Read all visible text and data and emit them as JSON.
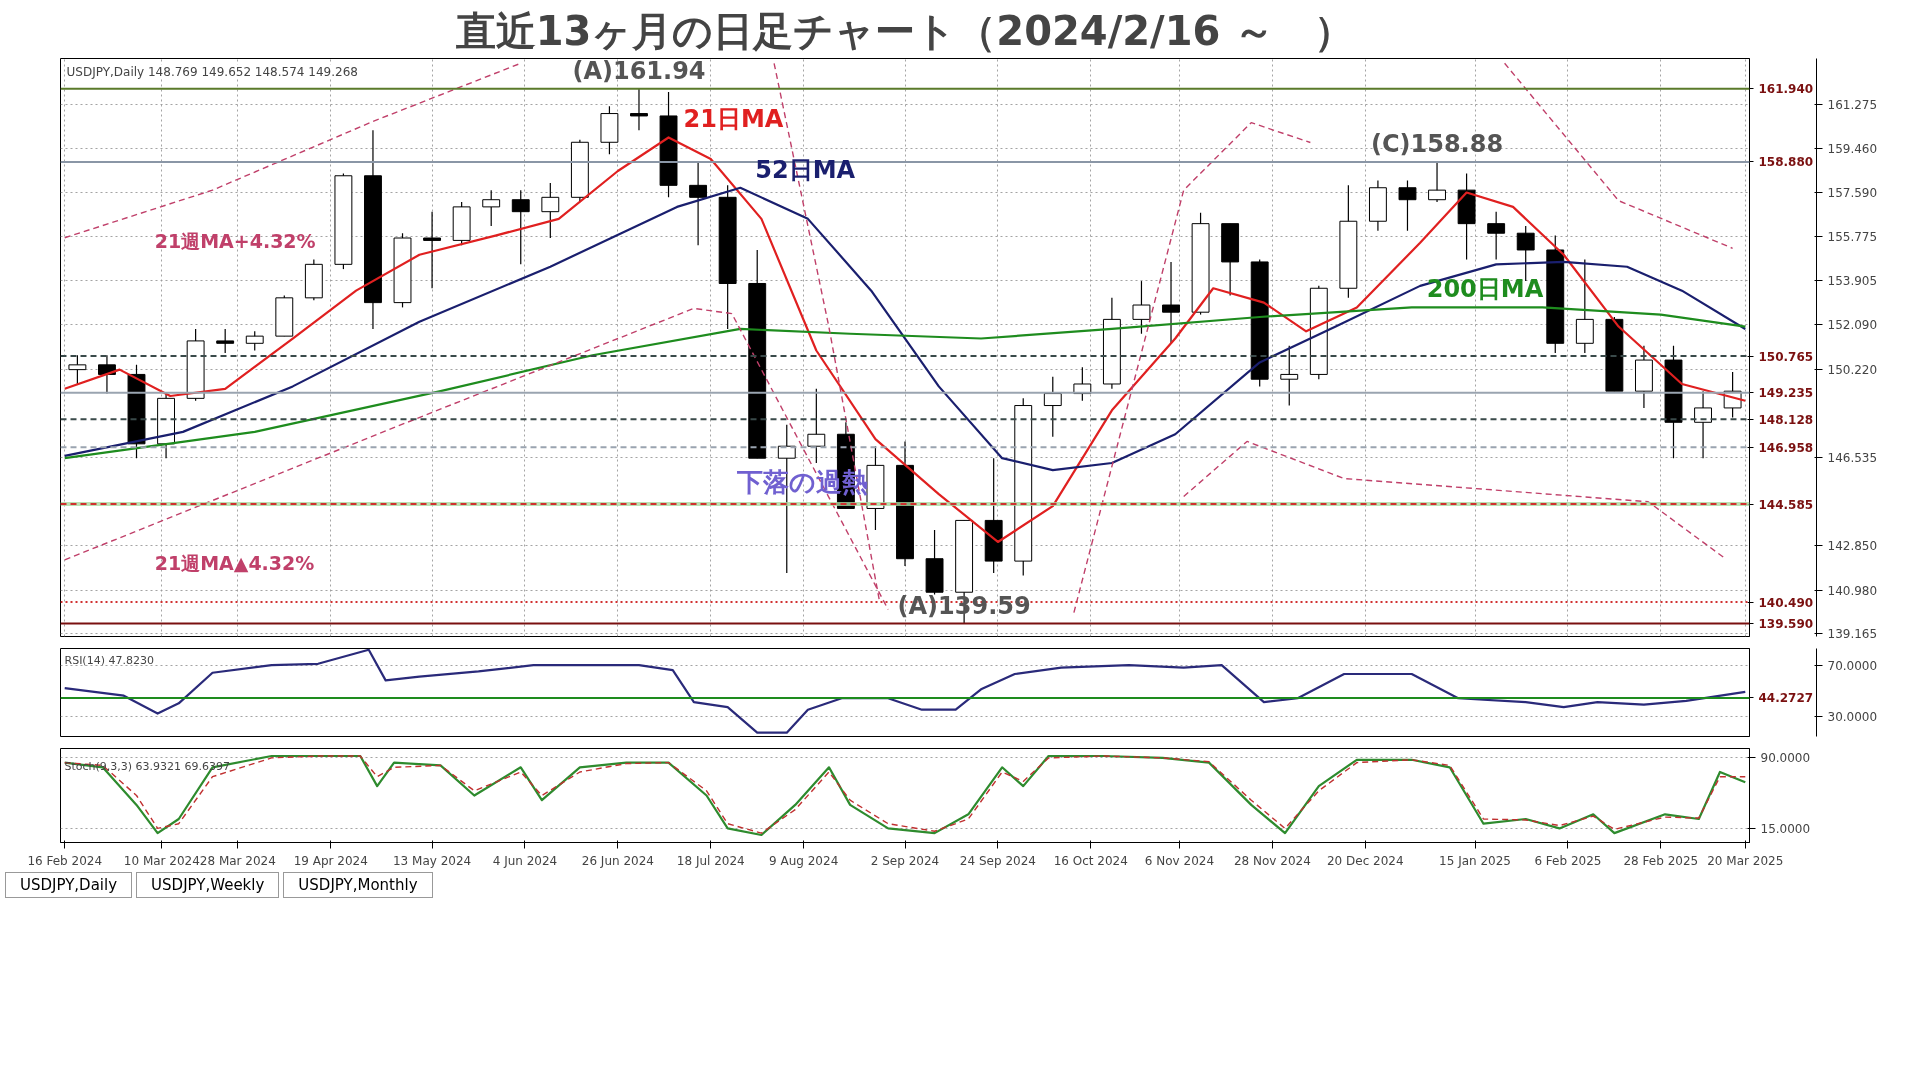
{
  "chart_data": [
    {
      "type": "candlestick",
      "title": "直近13ヶ月の日足チャート（2024/2/16 ～　）",
      "x": [
        "2024-02-19",
        "2024-02-26",
        "2024-03-04",
        "2024-03-11",
        "2024-03-18",
        "2024-03-25",
        "2024-04-01",
        "2024-04-08",
        "2024-04-15",
        "2024-04-22",
        "2024-04-29",
        "2024-05-06",
        "2024-05-13",
        "2024-05-20",
        "2024-05-27",
        "2024-06-03",
        "2024-06-10",
        "2024-06-17",
        "2024-06-24",
        "2024-07-01",
        "2024-07-08",
        "2024-07-15",
        "2024-07-22",
        "2024-07-29",
        "2024-08-05",
        "2024-08-12",
        "2024-08-19",
        "2024-08-26",
        "2024-09-02",
        "2024-09-09",
        "2024-09-16",
        "2024-09-23",
        "2024-09-30",
        "2024-10-07",
        "2024-10-14",
        "2024-10-21",
        "2024-10-28",
        "2024-11-04",
        "2024-11-11",
        "2024-11-18",
        "2024-11-25",
        "2024-12-02",
        "2024-12-09",
        "2024-12-16",
        "2024-12-23",
        "2024-12-30",
        "2025-01-06",
        "2025-01-13",
        "2025-01-20",
        "2025-01-27",
        "2025-02-03",
        "2025-02-10",
        "2025-02-17",
        "2025-02-24",
        "2025-03-03",
        "2025-03-10",
        "2025-03-17"
      ],
      "ohlc": [
        [
          150.2,
          150.8,
          149.6,
          150.4
        ],
        [
          150.4,
          150.8,
          149.2,
          150.0
        ],
        [
          150.0,
          150.4,
          146.5,
          147.1
        ],
        [
          147.1,
          149.2,
          146.5,
          149.0
        ],
        [
          149.0,
          151.9,
          148.9,
          151.4
        ],
        [
          151.4,
          151.9,
          150.9,
          151.3
        ],
        [
          151.3,
          151.8,
          151.0,
          151.6
        ],
        [
          151.6,
          153.3,
          151.6,
          153.2
        ],
        [
          153.2,
          154.8,
          153.1,
          154.6
        ],
        [
          154.6,
          158.4,
          154.4,
          158.3
        ],
        [
          158.3,
          160.2,
          151.9,
          153.0
        ],
        [
          153.0,
          155.9,
          152.8,
          155.7
        ],
        [
          155.7,
          156.8,
          153.6,
          155.6
        ],
        [
          155.6,
          157.2,
          155.4,
          157.0
        ],
        [
          157.0,
          157.7,
          156.2,
          157.3
        ],
        [
          157.3,
          157.7,
          154.6,
          156.8
        ],
        [
          156.8,
          158.0,
          155.7,
          157.4
        ],
        [
          157.4,
          159.8,
          157.2,
          159.7
        ],
        [
          159.7,
          161.2,
          159.2,
          160.9
        ],
        [
          160.9,
          161.94,
          160.2,
          160.8
        ],
        [
          160.8,
          161.8,
          157.4,
          157.9
        ],
        [
          157.9,
          158.9,
          155.4,
          157.4
        ],
        [
          157.4,
          157.9,
          151.9,
          153.8
        ],
        [
          153.8,
          155.2,
          146.5,
          146.5
        ],
        [
          146.5,
          147.9,
          141.7,
          147.0
        ],
        [
          147.0,
          149.4,
          146.3,
          147.5
        ],
        [
          147.5,
          148.0,
          144.4,
          144.4
        ],
        [
          144.4,
          147.0,
          143.5,
          146.2
        ],
        [
          146.2,
          147.2,
          142.0,
          142.3
        ],
        [
          142.3,
          143.5,
          140.8,
          140.9
        ],
        [
          140.9,
          143.9,
          139.59,
          143.9
        ],
        [
          143.9,
          146.5,
          141.7,
          142.2
        ],
        [
          142.2,
          149.0,
          141.6,
          148.7
        ],
        [
          148.7,
          149.9,
          147.4,
          149.2
        ],
        [
          149.2,
          150.3,
          148.9,
          149.6
        ],
        [
          149.6,
          153.2,
          149.4,
          152.3
        ],
        [
          152.3,
          153.9,
          151.7,
          152.9
        ],
        [
          152.9,
          154.7,
          151.3,
          152.6
        ],
        [
          152.6,
          156.75,
          152.5,
          156.3
        ],
        [
          156.3,
          156.3,
          153.3,
          154.7
        ],
        [
          154.7,
          154.8,
          149.5,
          149.8
        ],
        [
          149.8,
          151.2,
          148.7,
          150.0
        ],
        [
          150.0,
          153.7,
          149.8,
          153.6
        ],
        [
          153.6,
          157.9,
          153.2,
          156.4
        ],
        [
          156.4,
          158.1,
          156.0,
          157.8
        ],
        [
          157.8,
          158.1,
          156.0,
          157.3
        ],
        [
          157.3,
          158.88,
          157.2,
          157.7
        ],
        [
          157.7,
          158.4,
          154.8,
          156.3
        ],
        [
          156.3,
          156.8,
          154.8,
          155.9
        ],
        [
          155.9,
          156.2,
          153.9,
          155.2
        ],
        [
          155.2,
          155.8,
          150.9,
          151.3
        ],
        [
          151.3,
          154.8,
          150.9,
          152.3
        ],
        [
          152.3,
          152.4,
          149.3,
          149.3
        ],
        [
          149.3,
          151.2,
          148.6,
          150.6
        ],
        [
          150.6,
          151.2,
          146.5,
          148.0
        ],
        [
          148.0,
          149.3,
          146.5,
          148.6
        ],
        [
          148.6,
          150.1,
          148.2,
          149.3
        ]
      ],
      "series": [
        {
          "type": "line",
          "name": "21日MA",
          "color": "#e02020",
          "line_style": "solid",
          "x": [
            "2024-02-16",
            "2024-02-29",
            "2024-03-12",
            "2024-03-25",
            "2024-04-10",
            "2024-04-25",
            "2024-05-10",
            "2024-05-28",
            "2024-06-12",
            "2024-06-26",
            "2024-07-08",
            "2024-07-18",
            "2024-07-30",
            "2024-08-12",
            "2024-08-26",
            "2024-09-10",
            "2024-09-24",
            "2024-10-07",
            "2024-10-21",
            "2024-11-05",
            "2024-11-14",
            "2024-11-26",
            "2024-12-06",
            "2024-12-18",
            "2025-01-02",
            "2025-01-13",
            "2025-01-24",
            "2025-02-05",
            "2025-02-18",
            "2025-03-05",
            "2025-03-20"
          ],
          "values": [
            149.4,
            150.2,
            149.1,
            149.4,
            151.5,
            153.5,
            155.0,
            155.8,
            156.5,
            158.5,
            159.9,
            159.0,
            156.5,
            151.0,
            147.3,
            145.0,
            143.0,
            144.5,
            148.5,
            151.5,
            153.6,
            153.0,
            151.8,
            152.8,
            155.5,
            157.6,
            157.0,
            155.0,
            152.0,
            149.6,
            148.9
          ]
        },
        {
          "type": "line",
          "name": "52日MA",
          "color": "#1a1f6e",
          "line_style": "solid",
          "x": [
            "2024-02-16",
            "2024-03-15",
            "2024-04-10",
            "2024-05-10",
            "2024-06-10",
            "2024-07-10",
            "2024-07-25",
            "2024-08-10",
            "2024-08-25",
            "2024-09-10",
            "2024-09-25",
            "2024-10-07",
            "2024-10-21",
            "2024-11-05",
            "2024-11-25",
            "2024-12-13",
            "2025-01-02",
            "2025-01-20",
            "2025-02-05",
            "2025-02-20",
            "2025-03-05",
            "2025-03-20"
          ],
          "values": [
            146.6,
            147.6,
            149.5,
            152.2,
            154.5,
            157.0,
            157.8,
            156.5,
            153.5,
            149.5,
            146.5,
            146.0,
            146.3,
            147.5,
            150.5,
            152.0,
            153.7,
            154.6,
            154.7,
            154.5,
            153.5,
            151.9
          ]
        },
        {
          "type": "line",
          "name": "200日MA",
          "color": "#1e8c1e",
          "line_style": "solid",
          "x": [
            "2024-02-16",
            "2024-04-01",
            "2024-05-15",
            "2024-06-20",
            "2024-07-25",
            "2024-08-20",
            "2024-09-20",
            "2024-10-21",
            "2024-11-25",
            "2024-12-31",
            "2025-01-31",
            "2025-02-28",
            "2025-03-20"
          ],
          "values": [
            146.5,
            147.6,
            149.3,
            150.8,
            151.9,
            151.7,
            151.5,
            151.9,
            152.4,
            152.8,
            152.8,
            152.5,
            152.0
          ]
        },
        {
          "type": "line",
          "name": "21週MA+4.32%",
          "color": "#c0406a",
          "line_style": "dashed",
          "x": [
            "2024-02-16",
            "2024-03-22",
            "2024-04-29",
            "2024-06-03",
            "2024-06-20",
            "2024-08-02",
            "2024-08-15",
            "2024-08-27",
            "2024-09-20",
            "2024-10-12",
            "2024-11-07",
            "2024-11-23",
            "2024-12-07",
            "2024-12-25",
            "2025-01-22",
            "2025-02-18",
            "2025-03-17"
          ],
          "values": [
            155.71,
            157.7,
            160.57,
            163.0,
            null,
            163.0,
            151.96,
            140.49,
            null,
            140.05,
            157.7,
            160.52,
            159.69,
            null,
            163.0,
            157.26,
            155.27
          ]
        },
        {
          "type": "line",
          "name": "21週MA▲4.32%",
          "color": "#c0406a",
          "line_style": "dashed",
          "x": [
            "2024-02-16",
            "2024-05-02",
            "2024-07-14",
            "2024-07-23",
            "2024-08-29",
            "2024-10-20",
            "2024-11-07",
            "2024-11-22",
            "2024-12-15",
            "2025-02-25",
            "2025-03-15"
          ],
          "values": [
            142.25,
            147.64,
            152.76,
            152.54,
            140.18,
            null,
            144.9,
            147.2,
            145.65,
            144.68,
            142.34
          ]
        }
      ],
      "ref_lines": [
        {
          "axis": "y",
          "value": 161.94,
          "label": "161.940",
          "color": "#5a7a2a",
          "line_style": "solid"
        },
        {
          "axis": "y",
          "value": 158.88,
          "label": "158.880",
          "color": "#8a96a6",
          "line_style": "solid"
        },
        {
          "axis": "y",
          "value": 150.765,
          "label": "150.765",
          "color": "#3a4a4a",
          "line_style": "dashed"
        },
        {
          "axis": "y",
          "value": 149.235,
          "label": "149.235",
          "color": "#9aa4b0",
          "line_style": "solid"
        },
        {
          "axis": "y",
          "value": 148.128,
          "label": "148.128",
          "color": "#3a4a4a",
          "line_style": "dashed"
        },
        {
          "axis": "y",
          "value": 146.958,
          "label": "146.958",
          "color": "#9aa4b0",
          "line_style": "dashed"
        },
        {
          "axis": "y",
          "value": 144.585,
          "label": "144.585",
          "color": "#d03030",
          "line_style": "dashed"
        },
        {
          "axis": "y",
          "value": 140.49,
          "label": "140.490",
          "color": "#d03030",
          "line_style": "dotted"
        },
        {
          "axis": "y",
          "value": 139.59,
          "label": "139.590",
          "color": "#7a1010",
          "line_style": "solid"
        }
      ],
      "bands": [
        {
          "axis": "y",
          "from": 144.5,
          "to": 144.67,
          "color": "#a8d8a0"
        }
      ],
      "annotations": [
        "USDJPY,Daily  148.769 149.652 148.574 149.268",
        {
          "text": "(A)161.94",
          "x": "2024-07-01",
          "y": 161.94
        },
        {
          "text": "(C)158.88",
          "x": "2025-01-06",
          "y": 158.88
        },
        {
          "text": "(A)139.59",
          "x": "2024-09-16",
          "y": 139.59
        },
        "下落の過熱"
      ],
      "xlim": [
        "2024-02-15",
        "2025-03-21"
      ],
      "ylim": [
        139.05,
        163.2
      ],
      "xticks": [
        {
          "value": "2024-02-16",
          "label": null
        },
        {
          "value": "2024-03-10",
          "label": null
        },
        {
          "value": "2024-03-28",
          "label": null
        },
        {
          "value": "2024-04-19",
          "label": null
        },
        {
          "value": "2024-05-13",
          "label": null
        },
        {
          "value": "2024-06-04",
          "label": null
        },
        {
          "value": "2024-06-26",
          "label": null
        },
        {
          "value": "2024-07-18",
          "label": null
        },
        {
          "value": "2024-08-09",
          "label": null
        },
        {
          "value": "2024-09-02",
          "label": null
        },
        {
          "value": "2024-09-24",
          "label": null
        },
        {
          "value": "2024-10-16",
          "label": null
        },
        {
          "value": "2024-11-06",
          "label": null
        },
        {
          "value": "2024-11-28",
          "label": null
        },
        {
          "value": "2024-12-20",
          "label": null
        },
        {
          "value": "2025-01-15",
          "label": null
        },
        {
          "value": "2025-02-06",
          "label": null
        },
        {
          "value": "2025-02-28",
          "label": null
        },
        {
          "value": "2025-03-20",
          "label": null
        }
      ],
      "yticks": [
        {
          "value": 161.275,
          "label": "161.275"
        },
        {
          "value": 159.46,
          "label": "159.460"
        },
        {
          "value": 157.59,
          "label": "157.590"
        },
        {
          "value": 155.775,
          "label": "155.775"
        },
        {
          "value": 153.905,
          "label": "153.905"
        },
        {
          "value": 152.09,
          "label": "152.090"
        },
        {
          "value": 150.22,
          "label": "150.220"
        },
        {
          "value": 146.535,
          "label": "146.535"
        },
        {
          "value": 142.85,
          "label": "142.850"
        },
        {
          "value": 140.98,
          "label": "140.980"
        },
        {
          "value": 139.165,
          "label": "139.165"
        }
      ],
      "grid": true,
      "legend": false,
      "tick_labels": "y"
    },
    {
      "type": "line",
      "title": "RSI(14) 47.8230",
      "x": [
        "2024-02-16",
        "2024-03-01",
        "2024-03-09",
        "2024-03-14",
        "2024-03-22",
        "2024-04-05",
        "2024-04-16",
        "2024-04-28",
        "2024-05-02",
        "2024-05-10",
        "2024-05-24",
        "2024-06-06",
        "2024-06-17",
        "2024-07-01",
        "2024-07-09",
        "2024-07-14",
        "2024-07-22",
        "2024-07-29",
        "2024-08-05",
        "2024-08-10",
        "2024-08-18",
        "2024-08-29",
        "2024-09-06",
        "2024-09-14",
        "2024-09-20",
        "2024-09-28",
        "2024-10-09",
        "2024-10-25",
        "2024-11-07",
        "2024-11-16",
        "2024-11-26",
        "2024-12-04",
        "2024-12-15",
        "2024-12-31",
        "2025-01-11",
        "2025-01-27",
        "2025-02-05",
        "2025-02-13",
        "2025-02-24",
        "2025-03-06",
        "2025-03-20"
      ],
      "series": [
        {
          "color": "#2a2a7a",
          "values": [
            52,
            46,
            32,
            40,
            64,
            70,
            71,
            82,
            58,
            61,
            65,
            70,
            70,
            70,
            66,
            41,
            37,
            17,
            17,
            35,
            44,
            44,
            35,
            35,
            51,
            63,
            68,
            70,
            68,
            70,
            41,
            44,
            63,
            63,
            44,
            41,
            37,
            41,
            39,
            42,
            49
          ]
        }
      ],
      "ref_lines": [
        {
          "axis": "y",
          "value": 44.2727,
          "label": "44.2727",
          "color": "#1e8c1e",
          "line_style": "solid"
        }
      ],
      "xlim": [
        "2024-02-15",
        "2025-03-21"
      ],
      "ylim": [
        14,
        83
      ],
      "yticks": [
        {
          "value": 70,
          "label": "70.0000"
        },
        {
          "value": 30,
          "label": "30.0000"
        }
      ],
      "grid": "y",
      "legend": false,
      "tick_labels": "y"
    },
    {
      "type": "line",
      "title": "Stoch(9,3,3) 63.9321 69.6397",
      "x": [
        "2024-02-16",
        "2024-02-25",
        "2024-03-04",
        "2024-03-09",
        "2024-03-14",
        "2024-03-22",
        "2024-04-05",
        "2024-04-16",
        "2024-04-26",
        "2024-04-30",
        "2024-05-04",
        "2024-05-15",
        "2024-05-23",
        "2024-06-03",
        "2024-06-08",
        "2024-06-17",
        "2024-06-28",
        "2024-07-08",
        "2024-07-17",
        "2024-07-22",
        "2024-07-30",
        "2024-08-07",
        "2024-08-15",
        "2024-08-20",
        "2024-08-29",
        "2024-09-09",
        "2024-09-17",
        "2024-09-25",
        "2024-09-30",
        "2024-10-06",
        "2024-10-19",
        "2024-11-02",
        "2024-11-13",
        "2024-11-23",
        "2024-12-01",
        "2024-12-09",
        "2024-12-18",
        "2024-12-31",
        "2025-01-09",
        "2025-01-17",
        "2025-01-27",
        "2025-02-04",
        "2025-02-12",
        "2025-02-17",
        "2025-03-01",
        "2025-03-09",
        "2025-03-14",
        "2025-03-20"
      ],
      "series": [
        {
          "color": "#2e8b2e",
          "line_style": "solid",
          "values": [
            85,
            80,
            40,
            10,
            25,
            80,
            92,
            92,
            92,
            60,
            85,
            82,
            50,
            80,
            45,
            80,
            85,
            85,
            50,
            15,
            8,
            40,
            80,
            40,
            15,
            10,
            30,
            80,
            60,
            92,
            92,
            90,
            85,
            40,
            10,
            60,
            88,
            88,
            80,
            20,
            25,
            15,
            30,
            10,
            30,
            25,
            75,
            64
          ]
        },
        {
          "color": "#c03030",
          "line_style": "dashed",
          "values": [
            85,
            82,
            50,
            15,
            20,
            70,
            90,
            92,
            92,
            70,
            80,
            82,
            55,
            75,
            50,
            75,
            84,
            85,
            55,
            20,
            10,
            35,
            75,
            45,
            20,
            12,
            25,
            75,
            65,
            90,
            92,
            90,
            86,
            45,
            15,
            55,
            85,
            88,
            82,
            25,
            24,
            18,
            28,
            14,
            27,
            26,
            70,
            70
          ]
        }
      ],
      "xlim": [
        "2024-02-15",
        "2025-03-21"
      ],
      "ylim": [
        0,
        100
      ],
      "xticks": [
        {
          "value": "2024-02-16",
          "label": "16 Feb 2024"
        },
        {
          "value": "2024-03-10",
          "label": "10 Mar 2024"
        },
        {
          "value": "2024-03-28",
          "label": "28 Mar 2024"
        },
        {
          "value": "2024-04-19",
          "label": "19 Apr 2024"
        },
        {
          "value": "2024-05-13",
          "label": "13 May 2024"
        },
        {
          "value": "2024-06-04",
          "label": "4 Jun 2024"
        },
        {
          "value": "2024-06-26",
          "label": "26 Jun 2024"
        },
        {
          "value": "2024-07-18",
          "label": "18 Jul 2024"
        },
        {
          "value": "2024-08-09",
          "label": "9 Aug 2024"
        },
        {
          "value": "2024-09-02",
          "label": "2 Sep 2024"
        },
        {
          "value": "2024-09-24",
          "label": "24 Sep 2024"
        },
        {
          "value": "2024-10-16",
          "label": "16 Oct 2024"
        },
        {
          "value": "2024-11-06",
          "label": "6 Nov 2024"
        },
        {
          "value": "2024-11-28",
          "label": "28 Nov 2024"
        },
        {
          "value": "2024-12-20",
          "label": "20 Dec 2024"
        },
        {
          "value": "2025-01-15",
          "label": "15 Jan 2025"
        },
        {
          "value": "2025-02-06",
          "label": "6 Feb 2025"
        },
        {
          "value": "2025-02-28",
          "label": "28 Feb 2025"
        },
        {
          "value": "2025-03-20",
          "label": "20 Mar 2025"
        }
      ],
      "yticks": [
        {
          "value": 90,
          "label": "90.0000"
        },
        {
          "value": 15,
          "label": "15.0000"
        }
      ],
      "grid": "y",
      "legend": false
    },
    {
      "type": "other",
      "annotations": [
        "USDJPY,Daily",
        "USDJPY,Weekly",
        "USDJPY,Monthly"
      ]
    }
  ]
}
